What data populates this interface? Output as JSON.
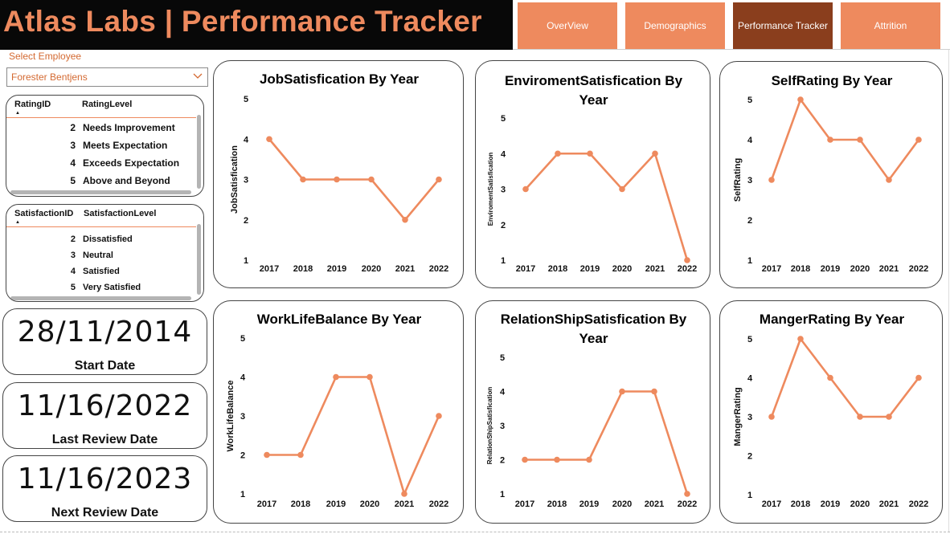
{
  "app_title": "Atlas Labs | Performance Tracker",
  "nav": [
    {
      "label": "OverView",
      "active": false
    },
    {
      "label": "Demographics",
      "active": false
    },
    {
      "label": "Performance Tracker",
      "active": true
    },
    {
      "label": "Attrition",
      "active": false
    }
  ],
  "employee_slicer": {
    "label": "Select Employee",
    "value": "Forester Bentjens",
    "icon": "chevron-down-icon"
  },
  "rating_table": {
    "headers": [
      "RatingID",
      "RatingLevel"
    ],
    "rows": [
      {
        "id": "2",
        "level": "Needs Improvement"
      },
      {
        "id": "3",
        "level": "Meets Expectation"
      },
      {
        "id": "4",
        "level": "Exceeds Expectation"
      },
      {
        "id": "5",
        "level": "Above and Beyond"
      }
    ]
  },
  "satisfaction_table": {
    "headers": [
      "SatisfactionID",
      "SatisfactionLevel"
    ],
    "rows": [
      {
        "id": "2",
        "level": "Dissatisfied"
      },
      {
        "id": "3",
        "level": "Neutral"
      },
      {
        "id": "4",
        "level": "Satisfied"
      },
      {
        "id": "5",
        "level": "Very Satisfied"
      }
    ]
  },
  "kpis": [
    {
      "value": "28/11/2014",
      "label": "Start Date"
    },
    {
      "value": "11/16/2022",
      "label": "Last Review Date"
    },
    {
      "value": "11/16/2023",
      "label": "Next Review Date"
    }
  ],
  "colors": {
    "accent": "#ee8a5e",
    "nav_active": "#8a3e1d",
    "title_bg": "#080808",
    "line": "#ee8a5e"
  },
  "chart_data": [
    {
      "type": "line",
      "title_lines": [
        "JobSatisfication By Year"
      ],
      "ylabel": "JobSatisfication",
      "x": [
        "2017",
        "2018",
        "2019",
        "2020",
        "2021",
        "2022"
      ],
      "values": [
        4,
        3,
        3,
        3,
        2,
        3
      ],
      "yticks": [
        1,
        2,
        3,
        4,
        5
      ],
      "ylim": [
        1,
        5
      ]
    },
    {
      "type": "line",
      "title_lines": [
        "EnviromentSatisfication By",
        "Year"
      ],
      "ylabel": "EnviromentSatisfication",
      "x": [
        "2017",
        "2018",
        "2019",
        "2020",
        "2021",
        "2022"
      ],
      "values": [
        3,
        4,
        4,
        3,
        4,
        1
      ],
      "yticks": [
        1,
        2,
        3,
        4,
        5
      ],
      "ylim": [
        1,
        5
      ]
    },
    {
      "type": "line",
      "title_lines": [
        "SelfRating By Year"
      ],
      "ylabel": "SelfRating",
      "x": [
        "2017",
        "2018",
        "2019",
        "2020",
        "2021",
        "2022"
      ],
      "values": [
        3,
        5,
        4,
        4,
        3,
        4
      ],
      "yticks": [
        1,
        2,
        3,
        4,
        5
      ],
      "ylim": [
        1,
        5
      ]
    },
    {
      "type": "line",
      "title_lines": [
        "WorkLifeBalance By Year"
      ],
      "ylabel": "WorkLifeBalance",
      "x": [
        "2017",
        "2018",
        "2019",
        "2020",
        "2021",
        "2022"
      ],
      "values": [
        2,
        2,
        4,
        4,
        1,
        3
      ],
      "yticks": [
        1,
        2,
        3,
        4,
        5
      ],
      "ylim": [
        1,
        5
      ]
    },
    {
      "type": "line",
      "title_lines": [
        "RelationShipSatisfication By",
        "Year"
      ],
      "ylabel": "RelationShipSatisfication",
      "x": [
        "2017",
        "2018",
        "2019",
        "2020",
        "2021",
        "2022"
      ],
      "values": [
        2,
        2,
        2,
        4,
        4,
        1
      ],
      "yticks": [
        1,
        2,
        3,
        4,
        5
      ],
      "ylim": [
        1,
        5
      ]
    },
    {
      "type": "line",
      "title_lines": [
        "MangerRating By Year"
      ],
      "ylabel": "MangerRating",
      "x": [
        "2017",
        "2018",
        "2019",
        "2020",
        "2021",
        "2022"
      ],
      "values": [
        3,
        5,
        4,
        3,
        3,
        4
      ],
      "yticks": [
        1,
        2,
        3,
        4,
        5
      ],
      "ylim": [
        1,
        5
      ]
    }
  ]
}
